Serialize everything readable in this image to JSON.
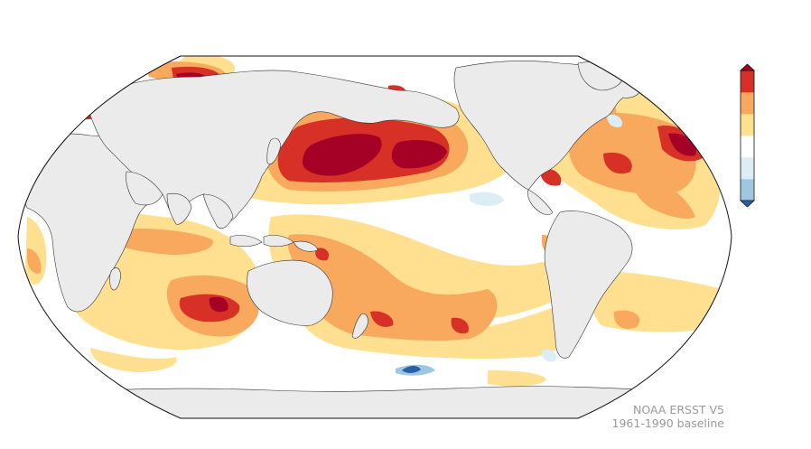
{
  "map": {
    "projection": "robinson",
    "land_color": "#ebebeb",
    "ocean_color": "#ffffff",
    "coastline_color": "#333333"
  },
  "colorbar": {
    "orientation": "vertical",
    "tick_labels_visible": false,
    "extend": "both",
    "colors": [
      "#2c5fa6",
      "#9ec8e2",
      "#dcedf5",
      "#ffffff",
      "#fee090",
      "#f9a95d",
      "#d73027",
      "#a50026"
    ]
  },
  "credit": {
    "source": "NOAA ERSST V5",
    "baseline": "1961-1990 baseline"
  }
}
